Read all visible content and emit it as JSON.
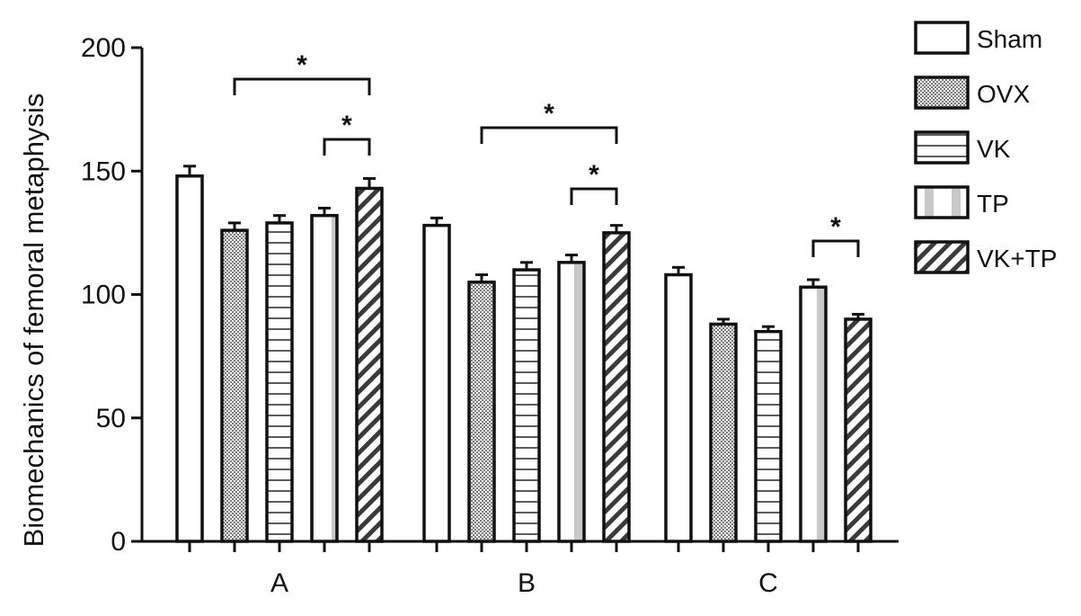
{
  "chart_data": {
    "type": "bar",
    "title": "",
    "xlabel": "",
    "ylabel": "Biomechanics of femoral metaphysis",
    "ylim": [
      0,
      200
    ],
    "yticks": [
      0,
      50,
      100,
      150,
      200
    ],
    "categories": [
      "A",
      "B",
      "C"
    ],
    "series": [
      {
        "name": "Sham",
        "pattern": "white",
        "values": [
          148,
          128,
          108
        ],
        "errors": [
          4,
          3,
          3
        ]
      },
      {
        "name": "OVX",
        "pattern": "crosshatch",
        "values": [
          126,
          105,
          88
        ],
        "errors": [
          3,
          3,
          2
        ]
      },
      {
        "name": "VK",
        "pattern": "horizontal-lines",
        "values": [
          129,
          110,
          85
        ],
        "errors": [
          3,
          3,
          2
        ]
      },
      {
        "name": "TP",
        "pattern": "vertical-stripe",
        "values": [
          132,
          113,
          103
        ],
        "errors": [
          3,
          3,
          3
        ]
      },
      {
        "name": "VK+TP",
        "pattern": "diagonal-lines",
        "values": [
          143,
          125,
          90
        ],
        "errors": [
          4,
          3,
          2
        ]
      }
    ],
    "significance": [
      {
        "category": "A",
        "from": "OVX",
        "to": "VK+TP",
        "label": "*"
      },
      {
        "category": "A",
        "from": "TP",
        "to": "VK+TP",
        "label": "*"
      },
      {
        "category": "B",
        "from": "OVX",
        "to": "VK+TP",
        "label": "*"
      },
      {
        "category": "B",
        "from": "TP",
        "to": "VK+TP",
        "label": "*"
      },
      {
        "category": "C",
        "from": "TP",
        "to": "VK+TP",
        "label": "*"
      }
    ],
    "legend_position": "top-right",
    "grid": false,
    "colors": {
      "stroke": "#111111",
      "fill": "#ffffff",
      "pattern": "#9a9a9a"
    }
  }
}
